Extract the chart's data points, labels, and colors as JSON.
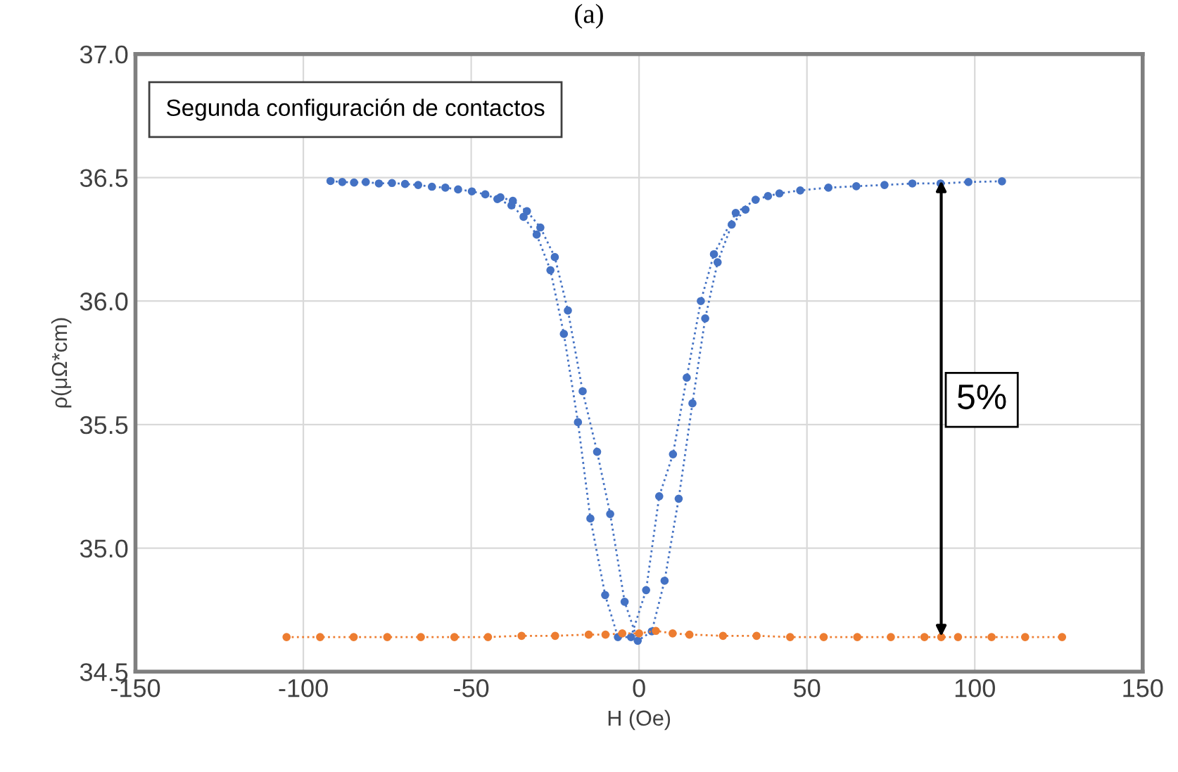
{
  "chart_data": {
    "type": "line",
    "title": "(a)",
    "xlabel": "H (Oe)",
    "ylabel": "ρ(μΩ*cm)",
    "xlim": [
      -150,
      150
    ],
    "xticks": [
      -150,
      -100,
      -50,
      0,
      50,
      100,
      150
    ],
    "ylim": [
      34.5,
      37.0
    ],
    "yticks": [
      {
        "value": 34.5,
        "label": "34.5"
      },
      {
        "value": 35.0,
        "label": "35.0"
      },
      {
        "value": 35.5,
        "label": "35.5"
      },
      {
        "value": 36.0,
        "label": "36.0"
      },
      {
        "value": 36.5,
        "label": "36.5"
      },
      {
        "value": 37.0,
        "label": "37.0"
      }
    ],
    "grid": true,
    "marker": "circle",
    "line_style": "dotted",
    "series": [
      {
        "color": "#4472c4",
        "x": [
          -91.9,
          -88.4,
          -84.9,
          -81.4,
          -77.5,
          -73.6,
          -69.7,
          -65.8,
          -61.7,
          -57.7,
          -53.9,
          -49.8,
          -45.8,
          -42.2,
          -38.0,
          -34.4,
          -30.5,
          -26.4,
          -22.4,
          -18.2,
          -14.5,
          -10.1,
          -6.3,
          -2.4,
          2.1,
          6.0,
          10.1,
          14.2,
          18.4,
          22.3,
          28.8,
          34.7,
          38.4,
          41.8,
          48.0,
          56.4,
          64.7,
          73.1,
          81.4,
          89.8,
          98.1,
          108.1
        ],
        "values": [
          36.486,
          36.482,
          36.48,
          36.482,
          36.476,
          36.478,
          36.474,
          36.47,
          36.463,
          36.459,
          36.452,
          36.444,
          36.432,
          36.413,
          36.387,
          36.341,
          36.269,
          36.125,
          35.867,
          35.51,
          35.12,
          34.81,
          34.64,
          34.64,
          34.83,
          35.21,
          35.38,
          35.69,
          36.0,
          36.19,
          36.357,
          36.41,
          36.425,
          36.436,
          36.448,
          36.459,
          36.465,
          36.47,
          36.476,
          36.476,
          36.482,
          36.485
        ]
      },
      {
        "color": "#4472c4",
        "x": [
          -41.3,
          -37.6,
          -33.4,
          -29.4,
          -25.1,
          -21.2,
          -16.8,
          -12.5,
          -8.6,
          -4.3,
          -0.4,
          3.8,
          7.6,
          11.8,
          15.9,
          19.7,
          23.4,
          27.6,
          31.7
        ],
        "values": [
          36.42,
          36.406,
          36.364,
          36.298,
          36.178,
          35.962,
          35.635,
          35.39,
          35.138,
          34.783,
          34.625,
          34.663,
          34.868,
          35.2,
          35.586,
          35.93,
          36.157,
          36.31,
          36.37
        ]
      },
      {
        "color": "#ed7d31",
        "x": [
          -105,
          -95,
          -85,
          -75,
          -65,
          -55,
          -45,
          -35,
          -25,
          -15,
          -10,
          -5,
          0,
          5,
          10,
          15,
          25,
          35,
          45,
          55,
          65,
          75,
          85,
          90,
          95,
          105,
          115,
          126
        ],
        "values": [
          34.64,
          34.64,
          34.64,
          34.64,
          34.64,
          34.64,
          34.64,
          34.645,
          34.645,
          34.65,
          34.65,
          34.655,
          34.655,
          34.665,
          34.655,
          34.65,
          34.645,
          34.645,
          34.64,
          34.64,
          34.64,
          34.64,
          34.64,
          34.64,
          34.64,
          34.64,
          34.64,
          34.64
        ]
      }
    ],
    "annotations": [
      "Segunda configuración de contactos",
      "5%"
    ]
  }
}
